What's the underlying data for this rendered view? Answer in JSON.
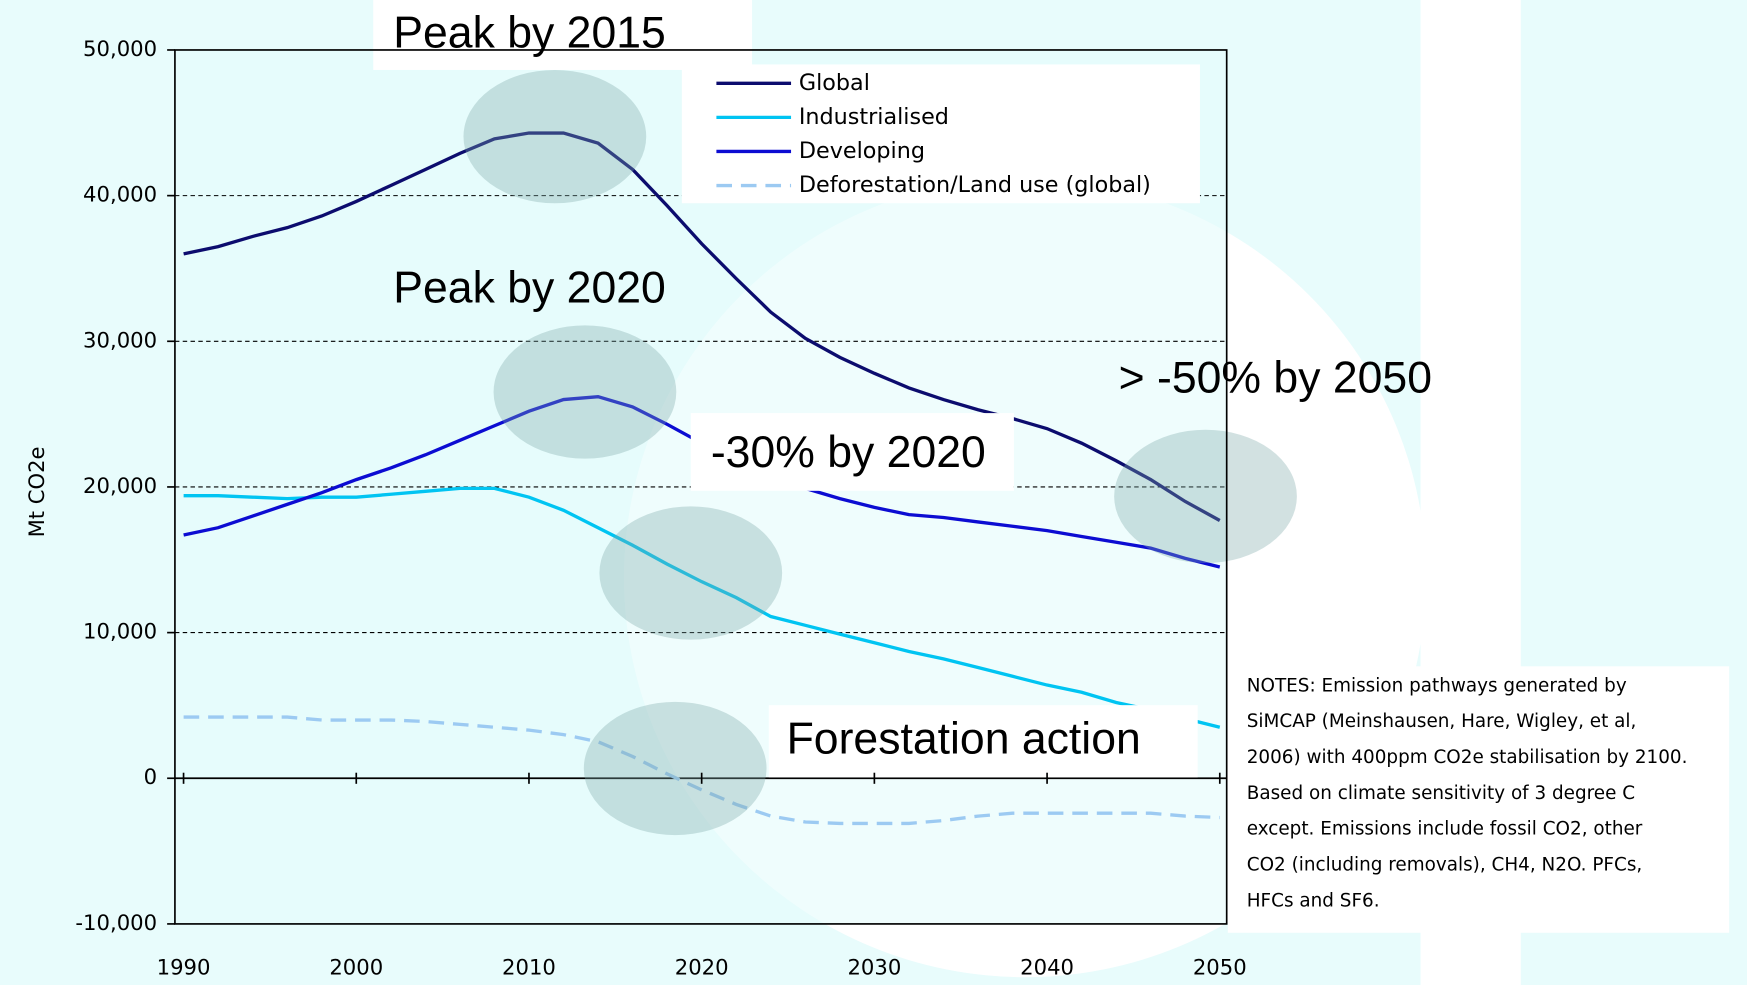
{
  "chart_data": {
    "type": "line",
    "y_label": "Mt CO2e",
    "x": [
      1990,
      1992,
      1994,
      1996,
      1998,
      2000,
      2002,
      2004,
      2006,
      2008,
      2010,
      2012,
      2014,
      2016,
      2018,
      2020,
      2022,
      2024,
      2026,
      2028,
      2030,
      2032,
      2034,
      2036,
      2038,
      2040,
      2042,
      2044,
      2046,
      2048,
      2050
    ],
    "series": [
      {
        "name": "Global",
        "color": "#0c0c6e",
        "dash": false,
        "values": [
          36000,
          36500,
          37200,
          37800,
          38600,
          39600,
          40700,
          41800,
          42900,
          43900,
          44300,
          44300,
          43600,
          41800,
          39300,
          36700,
          34300,
          32000,
          30200,
          28900,
          27800,
          26800,
          26000,
          25300,
          24700,
          24000,
          23000,
          21800,
          20500,
          19000,
          17700
        ]
      },
      {
        "name": "Industrialised",
        "color": "#00c4f2",
        "dash": false,
        "values": [
          19400,
          19400,
          19300,
          19200,
          19300,
          19300,
          19500,
          19700,
          19900,
          19900,
          19300,
          18400,
          17200,
          16000,
          14700,
          13500,
          12400,
          11100,
          10500,
          9900,
          9300,
          8700,
          8200,
          7600,
          7000,
          6400,
          5900,
          5200,
          4700,
          4100,
          3500
        ]
      },
      {
        "name": "Developing",
        "color": "#0c0cd2",
        "dash": false,
        "values": [
          16700,
          17200,
          18000,
          18800,
          19600,
          20500,
          21300,
          22200,
          23200,
          24200,
          25200,
          26000,
          26200,
          25500,
          24300,
          23000,
          21500,
          20500,
          19900,
          19200,
          18600,
          18100,
          17900,
          17600,
          17300,
          17000,
          16600,
          16200,
          15800,
          15100,
          14500
        ]
      },
      {
        "name": "Deforestation/Land use (global)",
        "color": "#9ccaf2",
        "dash": true,
        "values": [
          4200,
          4200,
          4200,
          4200,
          4000,
          4000,
          4000,
          3900,
          3700,
          3500,
          3300,
          3000,
          2500,
          1500,
          300,
          -800,
          -1800,
          -2600,
          -3000,
          -3100,
          -3100,
          -3100,
          -2900,
          -2600,
          -2400,
          -2400,
          -2400,
          -2400,
          -2400,
          -2600,
          -2700
        ]
      }
    ],
    "xlim": [
      1989.5,
      2050.4
    ],
    "xticks": [
      1990,
      2000,
      2010,
      2020,
      2030,
      2040,
      2050
    ],
    "ylim": [
      -10000,
      50000
    ],
    "yticks": [
      {
        "value": -10000,
        "label": "-10,000"
      },
      0,
      {
        "value": 10000,
        "label": "10,000"
      },
      {
        "value": 20000,
        "label": "20,000"
      },
      {
        "value": 30000,
        "label": "30,000"
      },
      {
        "value": 40000,
        "label": "40,000"
      },
      {
        "value": 50000,
        "label": "50,000"
      }
    ],
    "grid": true,
    "legend": "top-right",
    "annotations": [
      "Peak by 2015",
      "Peak by 2020",
      "-30% by 2020",
      "> -50% by 2050",
      "Forestation action"
    ],
    "notes": [
      "NOTES: Emission pathways generated by",
      "SiMCAP (Meinshausen, Hare, Wigley, et al,",
      "2006) with 400ppm CO2e stabilisation by 2100.",
      "Based on climate sensitivity of 3 degree C",
      "except.  Emissions include fossil CO2, other",
      "CO2 (including removals), CH4, N2O. PFCs,",
      "HFCs and SF6."
    ]
  }
}
